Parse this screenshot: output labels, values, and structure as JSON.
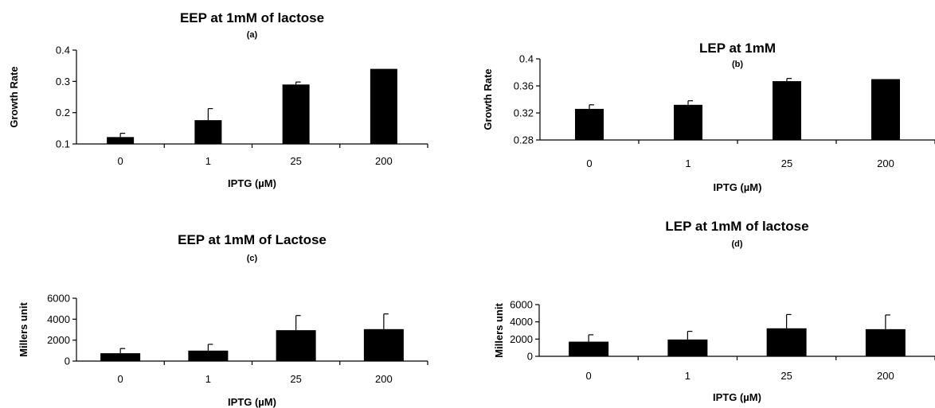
{
  "chart_data": [
    {
      "type": "bar",
      "title": "EEP at 1mM of lactose",
      "subtitle": "(a)",
      "xlabel": "IPTG (µM)",
      "ylabel": "Growth Rate",
      "categories": [
        "0",
        "1",
        "25",
        "200"
      ],
      "values": [
        0.122,
        0.176,
        0.29,
        0.34
      ],
      "errors": [
        0.012,
        0.037,
        0.008,
        0.0
      ],
      "ylim": [
        0.1,
        0.4
      ],
      "yticks": [
        "0.1",
        "0.2",
        "0.3",
        "0.4"
      ],
      "grid": false,
      "color": "#000000"
    },
    {
      "type": "bar",
      "title": "LEP at 1mM",
      "subtitle": "(b)",
      "xlabel": "IPTG (µM)",
      "ylabel": "Growth Rate",
      "categories": [
        "0",
        "1",
        "25",
        "200"
      ],
      "values": [
        0.326,
        0.332,
        0.367,
        0.37
      ],
      "errors": [
        0.006,
        0.006,
        0.004,
        0.0
      ],
      "ylim": [
        0.28,
        0.4
      ],
      "yticks": [
        "0.28",
        "0.32",
        "0.36",
        "0.4"
      ],
      "grid": false,
      "color": "#000000"
    },
    {
      "type": "bar",
      "title": "EEP at 1mM of Lactose",
      "subtitle": "(c)",
      "xlabel": "IPTG (µM)",
      "ylabel": "Millers unit",
      "categories": [
        "0",
        "1",
        "25",
        "200"
      ],
      "values": [
        750,
        1000,
        2950,
        3050
      ],
      "errors": [
        450,
        600,
        1400,
        1450
      ],
      "ylim": [
        0,
        6000
      ],
      "yticks": [
        "0",
        "2000",
        "4000",
        "6000"
      ],
      "grid": false,
      "color": "#000000"
    },
    {
      "type": "bar",
      "title": "LEP at 1mM of lactose",
      "subtitle": "(d)",
      "xlabel": "IPTG (µM)",
      "ylabel": "Millers unit",
      "categories": [
        "0",
        "1",
        "25",
        "200"
      ],
      "values": [
        1700,
        1950,
        3250,
        3150
      ],
      "errors": [
        800,
        950,
        1600,
        1650
      ],
      "ylim": [
        0,
        6000
      ],
      "yticks": [
        "0",
        "2000",
        "4000",
        "6000"
      ],
      "grid": false,
      "color": "#000000"
    }
  ]
}
